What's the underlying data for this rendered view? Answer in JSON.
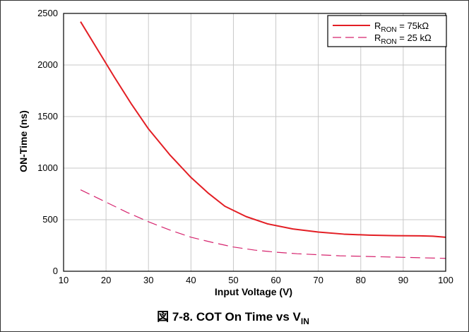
{
  "chart_data": {
    "type": "line",
    "title": "",
    "xlabel": "Input Voltage (V)",
    "ylabel": "ON-Time (ns)",
    "xlim": [
      10,
      100
    ],
    "ylim": [
      0,
      2500
    ],
    "xticks": [
      10,
      20,
      30,
      40,
      50,
      60,
      70,
      80,
      90,
      100
    ],
    "yticks": [
      0,
      500,
      1000,
      1500,
      2000,
      2500
    ],
    "grid": true,
    "legend_position": "top-right",
    "series": [
      {
        "name": "R_RON = 75kΩ",
        "legend": {
          "main": "R",
          "sub": "RON",
          "rest": " = 75kΩ"
        },
        "style": "solid",
        "color": "#e31e24",
        "x": [
          14,
          18,
          22,
          26,
          30,
          35,
          40,
          44,
          48,
          53,
          58,
          64,
          70,
          76,
          82,
          88,
          94,
          97,
          100
        ],
        "y": [
          2420,
          2150,
          1880,
          1620,
          1380,
          1130,
          910,
          760,
          630,
          530,
          460,
          410,
          380,
          360,
          350,
          345,
          343,
          340,
          330
        ]
      },
      {
        "name": "R_RON = 25 kΩ",
        "legend": {
          "main": "R",
          "sub": "RON",
          "rest": " = 25 kΩ"
        },
        "style": "dashed",
        "color": "#d6246e",
        "x": [
          14,
          20,
          25,
          30,
          35,
          40,
          45,
          50,
          55,
          60,
          65,
          70,
          75,
          80,
          85,
          90,
          95,
          100
        ],
        "y": [
          790,
          670,
          570,
          480,
          400,
          330,
          280,
          235,
          205,
          185,
          170,
          160,
          150,
          145,
          140,
          135,
          130,
          125
        ]
      }
    ]
  },
  "caption": {
    "prefix": "図 7-8. COT On Time vs V",
    "sub": "IN"
  }
}
